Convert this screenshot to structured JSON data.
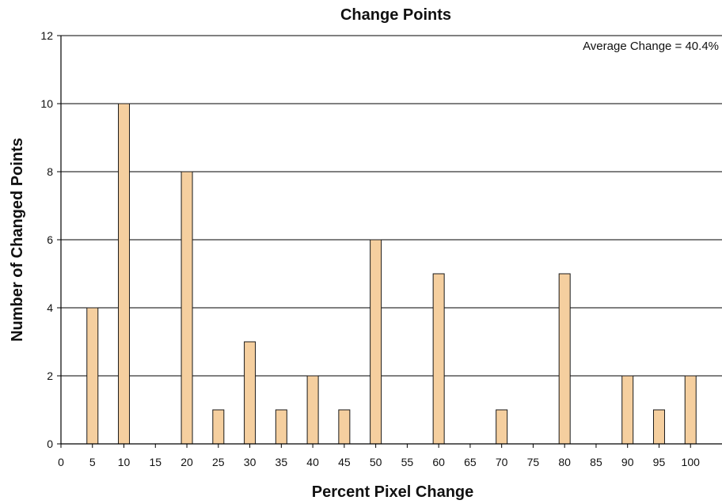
{
  "chart_data": {
    "type": "bar",
    "title": "Change Points",
    "xlabel": "Percent Pixel Change",
    "ylabel": "Number of Changed Points",
    "annotation": "Average Change = 40.4%",
    "annotation_placement": "top-right",
    "x_ticks": [
      "0",
      "5",
      "10",
      "15",
      "20",
      "25",
      "30",
      "35",
      "40",
      "45",
      "50",
      "55",
      "60",
      "65",
      "70",
      "75",
      "80",
      "85",
      "90",
      "95",
      "100"
    ],
    "y_ticks": [
      "0",
      "2",
      "4",
      "6",
      "8",
      "10",
      "12"
    ],
    "categories": [
      5,
      10,
      15,
      20,
      25,
      30,
      35,
      40,
      45,
      50,
      55,
      60,
      65,
      70,
      75,
      80,
      85,
      90,
      95,
      100
    ],
    "values": [
      4,
      10,
      0,
      8,
      1,
      3,
      1,
      2,
      1,
      6,
      0,
      5,
      0,
      1,
      0,
      5,
      0,
      2,
      1,
      2
    ],
    "xlim": [
      0,
      105
    ],
    "ylim": [
      0,
      12
    ],
    "grid": "horizontal",
    "bar_color": "#f5cf9f",
    "bar_edge_color": "#1a1a1a"
  }
}
